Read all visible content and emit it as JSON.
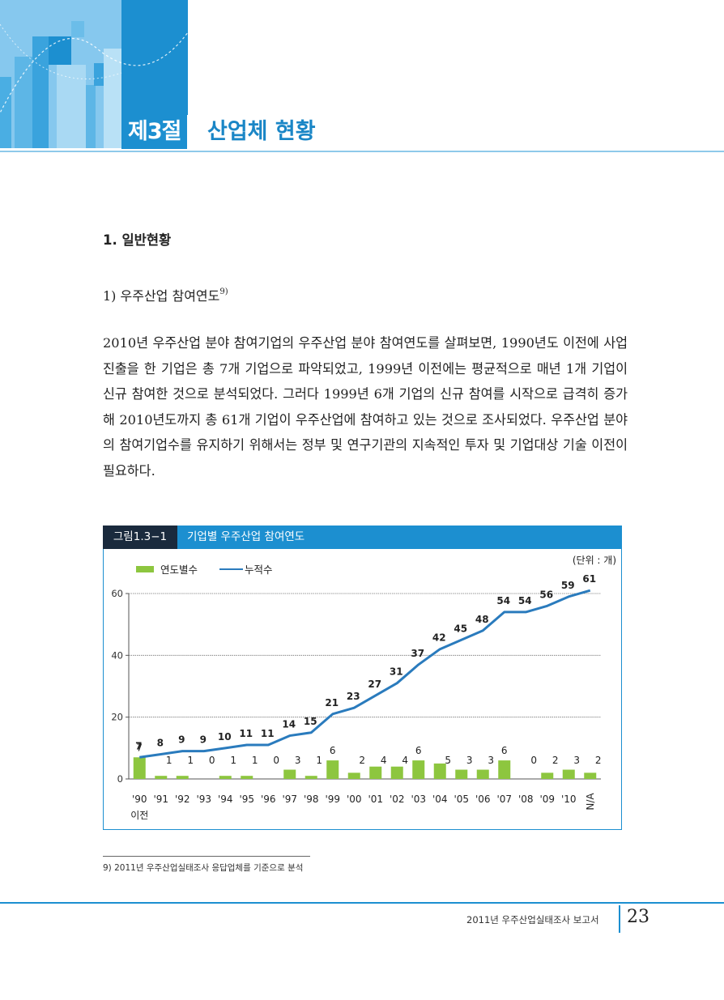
{
  "header": {
    "chapter_label": "제3절",
    "chapter_title": "산업체 현황"
  },
  "section": {
    "heading": "1. 일반현황",
    "subheading": "1) 우주산업 참여연도",
    "subheading_note": "9)",
    "paragraph": "2010년 우주산업 분야 참여기업의 우주산업 분야 참여연도를 살펴보면, 1990년도 이전에 사업진출을 한 기업은 총 7개 기업으로 파악되었고, 1999년 이전에는 평균적으로 매년 1개 기업이 신규 참여한 것으로 분석되었다. 그러다 1999년 6개 기업의 신규 참여를 시작으로 급격히 증가해 2010년도까지 총 61개 기업이 우주산업에 참여하고 있는 것으로 조사되었다. 우주산업 분야의 참여기업수를 유지하기 위해서는 정부 및 연구기관의 지속적인 투자 및 기업대상 기술 이전이 필요하다."
  },
  "figure": {
    "number": "그림1.3−1",
    "title": "기업별 우주산업 참여연도"
  },
  "chart_data": {
    "type": "bar",
    "title": "",
    "unit": "(단위 : 개)",
    "legend_position": "top-left",
    "categories": [
      "'90",
      "'91",
      "'92",
      "'93",
      "'94",
      "'95",
      "'96",
      "'97",
      "'98",
      "'99",
      "'00",
      "'01",
      "'02",
      "'03",
      "'04",
      "'05",
      "'06",
      "'07",
      "'08",
      "'09",
      "'10",
      "N/A"
    ],
    "first_category_sub": "이전",
    "series": [
      {
        "name": "연도별수",
        "kind": "bar",
        "color": "#8dc63f",
        "values": [
          7,
          1,
          1,
          0,
          1,
          1,
          0,
          3,
          1,
          6,
          2,
          4,
          4,
          6,
          5,
          3,
          3,
          6,
          0,
          2,
          3,
          2
        ]
      },
      {
        "name": "누적수",
        "kind": "line",
        "color": "#2a7bbd",
        "values": [
          7,
          8,
          9,
          9,
          10,
          11,
          11,
          14,
          15,
          21,
          23,
          27,
          31,
          37,
          42,
          45,
          48,
          54,
          54,
          56,
          59,
          61
        ]
      }
    ],
    "y_ticks": [
      0,
      20,
      40,
      60
    ],
    "ylim": [
      0,
      60
    ],
    "grid": true
  },
  "footnote": "9) 2011년 우주산업실태조사 응답업체를 기준으로 분석",
  "footer": {
    "report_title": "2011년 우주산업실태조사 보고서",
    "page_number": "23"
  }
}
